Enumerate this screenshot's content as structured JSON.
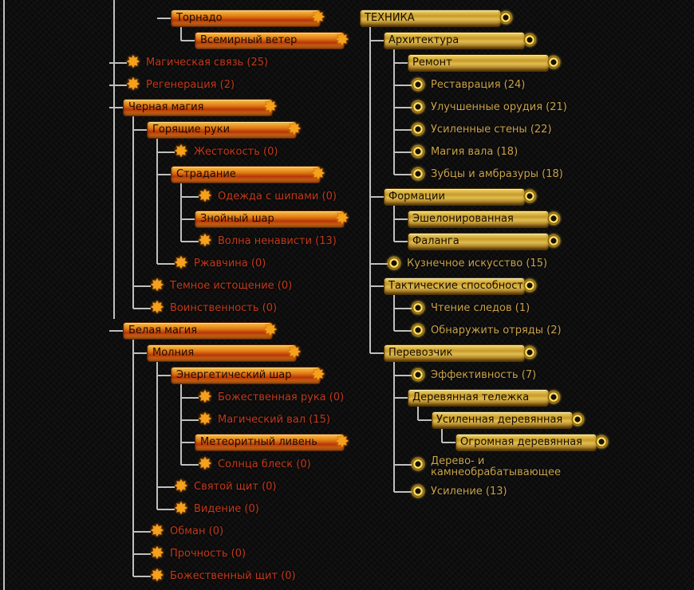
{
  "colors": {
    "background": "#0b0b0b",
    "connector": "#bfbfbf",
    "magic_leaf_text": "#c23a1c",
    "tech_leaf_text": "#c9a24a"
  },
  "icons": {
    "magic_cap": "flame-star-icon",
    "tech_cap": "gold-ring-icon"
  },
  "magic_tree": [
    {
      "label": "Торнадо",
      "type": "bar",
      "depth": 2,
      "children": [
        {
          "label": "Всемирный ветер",
          "type": "bar",
          "depth": 3
        }
      ]
    },
    {
      "label": "Магическая связь (25)",
      "type": "leaf",
      "depth": 0
    },
    {
      "label": "Регенерация (2)",
      "type": "leaf",
      "depth": 0
    },
    {
      "label": "Черная магия",
      "type": "bar",
      "depth": 0,
      "children": [
        {
          "label": "Горящие руки",
          "type": "bar",
          "depth": 1,
          "children": [
            {
              "label": "Жестокость (0)",
              "type": "leaf",
              "depth": 2
            },
            {
              "label": "Страдание",
              "type": "bar",
              "depth": 2,
              "children": [
                {
                  "label": "Одежда с шипами (0)",
                  "type": "leaf",
                  "depth": 3
                },
                {
                  "label": "Знойный шар",
                  "type": "bar",
                  "depth": 3
                },
                {
                  "label": "Волна ненависти (13)",
                  "type": "leaf",
                  "depth": 3
                }
              ]
            },
            {
              "label": "Ржавчина (0)",
              "type": "leaf",
              "depth": 2
            }
          ]
        },
        {
          "label": "Темное истощение (0)",
          "type": "leaf",
          "depth": 1
        },
        {
          "label": "Воинственность (0)",
          "type": "leaf",
          "depth": 1
        }
      ]
    },
    {
      "label": "Белая магия",
      "type": "bar",
      "depth": 0,
      "children": [
        {
          "label": "Молния",
          "type": "bar",
          "depth": 1,
          "children": [
            {
              "label": "Энергетический шар",
              "type": "bar",
              "depth": 2,
              "children": [
                {
                  "label": "Божественная рука (0)",
                  "type": "leaf",
                  "depth": 3
                },
                {
                  "label": "Магический вал (15)",
                  "type": "leaf",
                  "depth": 3
                },
                {
                  "label": "Метеоритный ливень",
                  "type": "bar",
                  "depth": 3
                },
                {
                  "label": "Солнца блеск (0)",
                  "type": "leaf",
                  "depth": 3
                }
              ]
            },
            {
              "label": "Святой щит (0)",
              "type": "leaf",
              "depth": 2
            },
            {
              "label": "Видение (0)",
              "type": "leaf",
              "depth": 2
            }
          ]
        },
        {
          "label": "Обман (0)",
          "type": "leaf",
          "depth": 1
        },
        {
          "label": "Прочность (0)",
          "type": "leaf",
          "depth": 1
        },
        {
          "label": "Божественный щит (0)",
          "type": "leaf",
          "depth": 1
        }
      ]
    }
  ],
  "tech_tree": [
    {
      "label": "ТЕХНИКА",
      "type": "bar",
      "depth": 0,
      "children": [
        {
          "label": "Архитектура",
          "type": "bar",
          "depth": 1,
          "children": [
            {
              "label": "Ремонт",
              "type": "bar",
              "depth": 2
            },
            {
              "label": "Реставрация (24)",
              "type": "leaf",
              "depth": 2
            },
            {
              "label": "Улучшенные орудия (21)",
              "type": "leaf",
              "depth": 2
            },
            {
              "label": "Усиленные стены (22)",
              "type": "leaf",
              "depth": 2
            },
            {
              "label": "Магия вала (18)",
              "type": "leaf",
              "depth": 2
            },
            {
              "label": "Зубцы и амбразуры (18)",
              "type": "leaf",
              "depth": 2
            }
          ]
        },
        {
          "label": "Формации",
          "type": "bar",
          "depth": 1,
          "children": [
            {
              "label": "Эшелонированная",
              "type": "bar",
              "depth": 2
            },
            {
              "label": "Фаланга",
              "type": "bar",
              "depth": 2
            }
          ]
        },
        {
          "label": "Кузнечное искусство (15)",
          "type": "leaf",
          "depth": 1
        },
        {
          "label": "Тактические способности",
          "type": "bar",
          "depth": 1,
          "children": [
            {
              "label": "Чтение следов (1)",
              "type": "leaf",
              "depth": 2
            },
            {
              "label": "Обнаружить отряды (2)",
              "type": "leaf",
              "depth": 2
            }
          ]
        },
        {
          "label": "Перевозчик",
          "type": "bar",
          "depth": 1,
          "children": [
            {
              "label": "Эффективность (7)",
              "type": "leaf",
              "depth": 2
            },
            {
              "label": "Деревянная тележка",
              "type": "bar",
              "depth": 2,
              "children": [
                {
                  "label": "Усиленная деревянная",
                  "type": "bar",
                  "depth": 3,
                  "children": [
                    {
                      "label": "Огромная деревянная",
                      "type": "bar",
                      "depth": 4
                    }
                  ]
                }
              ]
            },
            {
              "label": "Дерево- и камнеобрабатывающее",
              "type": "leaf",
              "depth": 2,
              "wrap": true
            },
            {
              "label": "Усиление (13)",
              "type": "leaf",
              "depth": 2
            }
          ]
        }
      ]
    }
  ]
}
